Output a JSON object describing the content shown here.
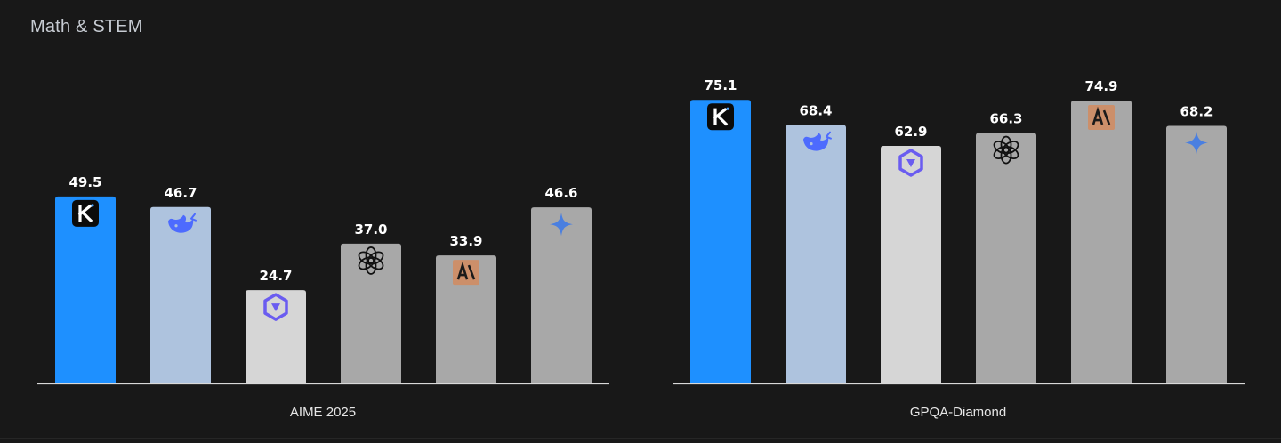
{
  "section": {
    "title": "Math & STEM"
  },
  "colors": {
    "background": "#181818",
    "axis": "#d9d9d9",
    "value_label": "#ffffff",
    "xlabel": "#e6e6e6"
  },
  "chart_data": [
    {
      "type": "bar",
      "title": "",
      "xlabel": "AIME 2025",
      "ylabel": "",
      "ylim": [
        0,
        80
      ],
      "grid": false,
      "bars": [
        {
          "value": 49.5,
          "label": "49.5",
          "color": "#1e90ff",
          "icon": "kimi-icon"
        },
        {
          "value": 46.7,
          "label": "46.7",
          "color": "#aec3de",
          "icon": "deepseek-whale-icon"
        },
        {
          "value": 24.7,
          "label": "24.7",
          "color": "#d6d6d6",
          "icon": "qwen-icon"
        },
        {
          "value": 37.0,
          "label": "37.0",
          "color": "#a8a8a8",
          "icon": "openai-icon"
        },
        {
          "value": 33.9,
          "label": "33.9",
          "color": "#a8a8a8",
          "icon": "anthropic-icon"
        },
        {
          "value": 46.6,
          "label": "46.6",
          "color": "#a8a8a8",
          "icon": "gemini-sparkle-icon"
        }
      ]
    },
    {
      "type": "bar",
      "title": "",
      "xlabel": "GPQA-Diamond",
      "ylabel": "",
      "ylim": [
        0,
        80
      ],
      "grid": false,
      "bars": [
        {
          "value": 75.1,
          "label": "75.1",
          "color": "#1e90ff",
          "icon": "kimi-icon"
        },
        {
          "value": 68.4,
          "label": "68.4",
          "color": "#aec3de",
          "icon": "deepseek-whale-icon"
        },
        {
          "value": 62.9,
          "label": "62.9",
          "color": "#d6d6d6",
          "icon": "qwen-icon"
        },
        {
          "value": 66.3,
          "label": "66.3",
          "color": "#a8a8a8",
          "icon": "openai-icon"
        },
        {
          "value": 74.9,
          "label": "74.9",
          "color": "#a8a8a8",
          "icon": "anthropic-icon"
        },
        {
          "value": 68.2,
          "label": "68.2",
          "color": "#a8a8a8",
          "icon": "gemini-sparkle-icon"
        }
      ]
    }
  ]
}
